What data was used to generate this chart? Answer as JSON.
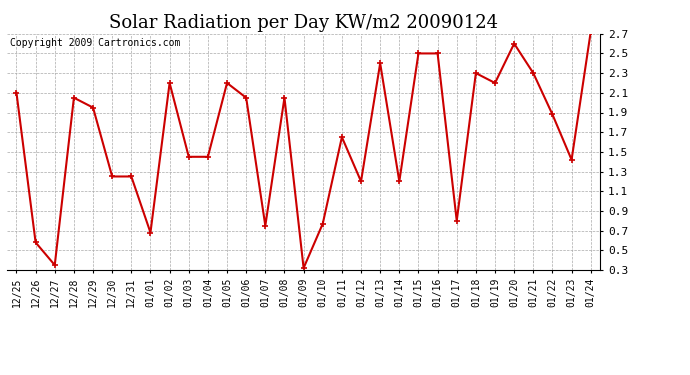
{
  "title": "Solar Radiation per Day KW/m2 20090124",
  "copyright": "Copyright 2009 Cartronics.com",
  "labels": [
    "12/25",
    "12/26",
    "12/27",
    "12/28",
    "12/29",
    "12/30",
    "12/31",
    "01/01",
    "01/02",
    "01/03",
    "01/04",
    "01/05",
    "01/06",
    "01/07",
    "01/08",
    "01/09",
    "01/10",
    "01/11",
    "01/12",
    "01/13",
    "01/14",
    "01/15",
    "01/16",
    "01/17",
    "01/18",
    "01/19",
    "01/20",
    "01/21",
    "01/22",
    "01/23",
    "01/24"
  ],
  "values": [
    2.1,
    0.58,
    0.35,
    2.05,
    1.95,
    1.25,
    1.25,
    0.68,
    2.2,
    1.45,
    1.45,
    2.2,
    2.05,
    0.75,
    2.05,
    0.32,
    0.77,
    1.65,
    1.2,
    2.4,
    1.2,
    2.5,
    2.5,
    0.8,
    2.3,
    2.2,
    2.6,
    2.3,
    1.88,
    1.42,
    2.72
  ],
  "line_color": "#cc0000",
  "marker": "+",
  "marker_size": 5,
  "marker_edge_width": 1.2,
  "line_width": 1.5,
  "ylim": [
    0.3,
    2.7
  ],
  "yticks": [
    0.3,
    0.5,
    0.7,
    0.9,
    1.1,
    1.3,
    1.5,
    1.7,
    1.9,
    2.1,
    2.3,
    2.5,
    2.7
  ],
  "bg_color": "#ffffff",
  "grid_color": "#aaaaaa",
  "title_fontsize": 13,
  "tick_fontsize": 7,
  "copyright_fontsize": 7
}
